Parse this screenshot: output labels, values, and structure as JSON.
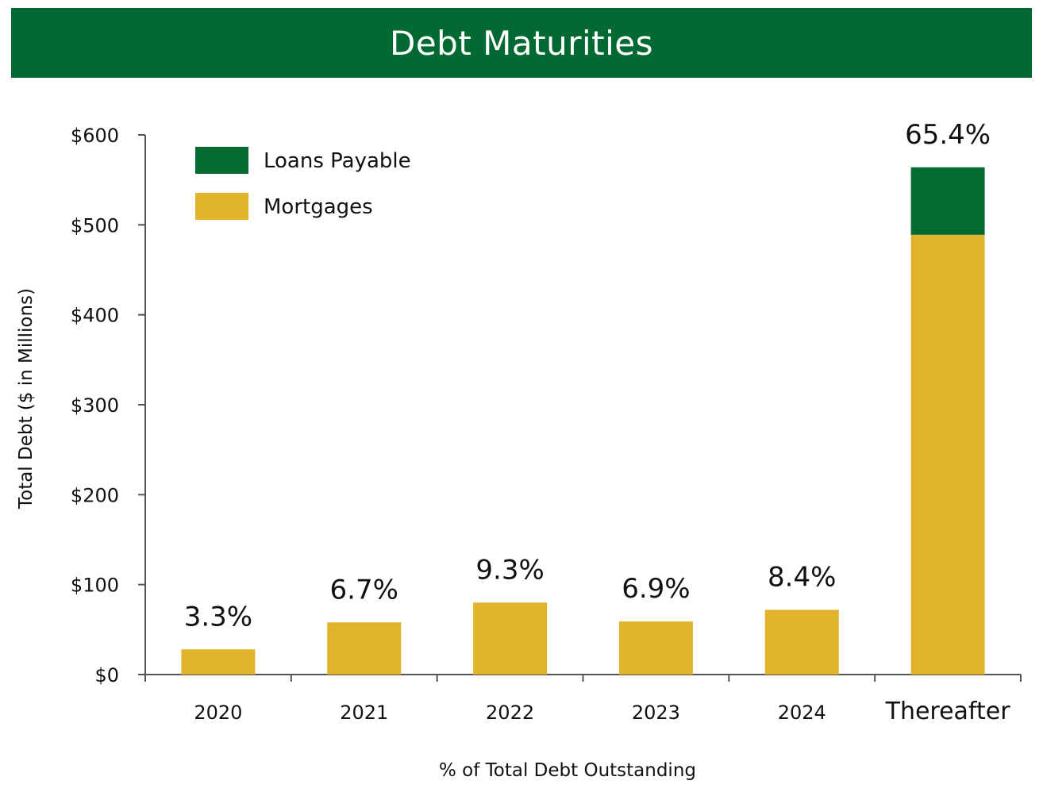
{
  "header": {
    "title": "Debt Maturities"
  },
  "colors": {
    "header_bg": "#026932",
    "loans_payable": "#036B32",
    "mortgages": "#E1B32D",
    "axis": "#555555"
  },
  "chart_data": {
    "type": "bar",
    "stacked": true,
    "title": "Debt Maturities",
    "xlabel": "% of Total Debt Outstanding",
    "ylabel": "Total Debt ($ in Millions)",
    "ylim": [
      0,
      600
    ],
    "yticks": [
      0,
      100,
      200,
      300,
      400,
      500,
      600
    ],
    "ytick_labels": [
      "$0",
      "$100",
      "$200",
      "$300",
      "$400",
      "$500",
      "$600"
    ],
    "categories": [
      "2020",
      "2021",
      "2022",
      "2023",
      "2024",
      "Thereafter"
    ],
    "series": [
      {
        "name": "Mortgages",
        "color": "#E1B32D",
        "values": [
          28,
          58,
          80,
          59,
          72,
          489
        ]
      },
      {
        "name": "Loans Payable",
        "color": "#036B32",
        "values": [
          0,
          0,
          0,
          0,
          0,
          75
        ]
      }
    ],
    "data_labels": [
      "3.3%",
      "6.7%",
      "9.3%",
      "6.9%",
      "8.4%",
      "65.4%"
    ],
    "legend": {
      "position": "top-left",
      "entries": [
        "Loans Payable",
        "Mortgages"
      ]
    }
  }
}
